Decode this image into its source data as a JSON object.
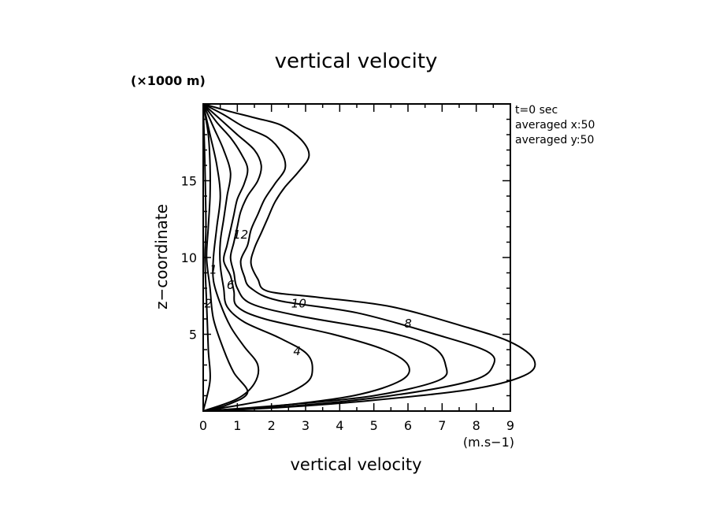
{
  "chart_data": {
    "type": "line",
    "title": "vertical velocity",
    "xlabel": "vertical velocity",
    "ylabel": "z−coordinate",
    "x_unit": "(m.s−1)",
    "y_unit": "(×1000 m)",
    "xlim": [
      0,
      9
    ],
    "ylim": [
      0,
      20
    ],
    "x_ticks": [
      0,
      1,
      2,
      3,
      4,
      5,
      6,
      7,
      8,
      9
    ],
    "y_ticks": [
      5,
      10,
      15
    ],
    "grid": false,
    "info": [
      "t=0 sec",
      "averaged  x:50",
      "averaged  y:50"
    ],
    "series": [
      {
        "label": "10",
        "label_at": [
          2.8,
          7.0
        ],
        "points": [
          [
            0,
            20
          ],
          [
            0.8,
            19.5
          ],
          [
            1.5,
            19.1
          ],
          [
            2.3,
            18.6
          ],
          [
            2.9,
            17.6
          ],
          [
            3.1,
            16.6
          ],
          [
            2.8,
            15.6
          ],
          [
            2.4,
            14.6
          ],
          [
            2.1,
            13.6
          ],
          [
            1.9,
            12.6
          ],
          [
            1.7,
            11.6
          ],
          [
            1.5,
            10.6
          ],
          [
            1.4,
            9.6
          ],
          [
            1.6,
            8.6
          ],
          [
            1.9,
            7.8
          ],
          [
            3.4,
            7.4
          ],
          [
            5.5,
            6.8
          ],
          [
            7.5,
            5.6
          ],
          [
            9.0,
            4.5
          ],
          [
            9.7,
            3.3
          ],
          [
            9.4,
            2.3
          ],
          [
            7.8,
            1.4
          ],
          [
            4.5,
            0.6
          ],
          [
            2.0,
            0.2
          ],
          [
            0,
            0
          ]
        ]
      },
      {
        "label": "8",
        "label_at": [
          6.0,
          5.7
        ],
        "points": [
          [
            0,
            20
          ],
          [
            0.6,
            19.3
          ],
          [
            1.2,
            18.5
          ],
          [
            1.9,
            17.8
          ],
          [
            2.3,
            16.8
          ],
          [
            2.4,
            15.8
          ],
          [
            2.1,
            14.8
          ],
          [
            1.8,
            13.8
          ],
          [
            1.6,
            12.8
          ],
          [
            1.4,
            11.8
          ],
          [
            1.3,
            10.8
          ],
          [
            1.1,
            9.8
          ],
          [
            1.2,
            8.8
          ],
          [
            1.4,
            8.0
          ],
          [
            2.2,
            7.2
          ],
          [
            4.5,
            6.4
          ],
          [
            6.8,
            5.0
          ],
          [
            8.3,
            3.9
          ],
          [
            8.5,
            3.0
          ],
          [
            7.9,
            2.0
          ],
          [
            5.5,
            1.0
          ],
          [
            2.5,
            0.3
          ],
          [
            0,
            0
          ]
        ]
      },
      {
        "label": "12",
        "label_at": [
          1.1,
          11.5
        ],
        "points": [
          [
            0,
            20
          ],
          [
            0.5,
            19.0
          ],
          [
            1.0,
            18.0
          ],
          [
            1.5,
            17.0
          ],
          [
            1.7,
            16.0
          ],
          [
            1.6,
            15.0
          ],
          [
            1.3,
            14.0
          ],
          [
            1.1,
            13.0
          ],
          [
            1.0,
            12.0
          ],
          [
            0.9,
            11.0
          ],
          [
            0.8,
            10.0
          ],
          [
            0.9,
            9.0
          ],
          [
            1.0,
            8.0
          ],
          [
            1.4,
            7.0
          ],
          [
            2.8,
            6.2
          ],
          [
            5.3,
            5.2
          ],
          [
            6.7,
            4.2
          ],
          [
            7.1,
            3.0
          ],
          [
            6.9,
            2.0
          ],
          [
            5.0,
            1.0
          ],
          [
            2.4,
            0.4
          ],
          [
            0,
            0
          ]
        ]
      },
      {
        "label": "6",
        "label_at": [
          0.8,
          8.2
        ],
        "points": [
          [
            0,
            20
          ],
          [
            0.4,
            18.8
          ],
          [
            0.8,
            17.8
          ],
          [
            1.1,
            16.8
          ],
          [
            1.3,
            15.8
          ],
          [
            1.2,
            14.8
          ],
          [
            1.0,
            13.8
          ],
          [
            0.9,
            12.8
          ],
          [
            0.8,
            11.8
          ],
          [
            0.7,
            10.8
          ],
          [
            0.6,
            9.8
          ],
          [
            0.8,
            8.8
          ],
          [
            0.9,
            7.8
          ],
          [
            1.0,
            6.8
          ],
          [
            1.8,
            6.0
          ],
          [
            3.8,
            5.0
          ],
          [
            5.3,
            4.0
          ],
          [
            6.0,
            3.0
          ],
          [
            5.8,
            2.0
          ],
          [
            4.4,
            1.0
          ],
          [
            2.0,
            0.3
          ],
          [
            0,
            0
          ]
        ]
      },
      {
        "label": "4",
        "label_at": [
          2.75,
          3.9
        ],
        "points": [
          [
            0,
            20
          ],
          [
            0.3,
            18.5
          ],
          [
            0.6,
            17.0
          ],
          [
            0.8,
            15.5
          ],
          [
            0.7,
            14.0
          ],
          [
            0.6,
            12.5
          ],
          [
            0.5,
            11.0
          ],
          [
            0.5,
            9.5
          ],
          [
            0.6,
            8.0
          ],
          [
            0.7,
            6.8
          ],
          [
            1.2,
            5.8
          ],
          [
            2.2,
            4.8
          ],
          [
            3.0,
            3.8
          ],
          [
            3.2,
            2.8
          ],
          [
            3.0,
            1.8
          ],
          [
            2.0,
            0.8
          ],
          [
            0,
            0
          ]
        ]
      },
      {
        "label": "2",
        "label_at": [
          0.15,
          7.0
        ],
        "points": [
          [
            0,
            20
          ],
          [
            0.2,
            18.0
          ],
          [
            0.4,
            16.0
          ],
          [
            0.5,
            14.0
          ],
          [
            0.4,
            12.0
          ],
          [
            0.3,
            10.0
          ],
          [
            0.3,
            8.5
          ],
          [
            0.5,
            7.0
          ],
          [
            0.8,
            5.5
          ],
          [
            1.2,
            4.2
          ],
          [
            1.6,
            3.0
          ],
          [
            1.5,
            1.8
          ],
          [
            1.0,
            0.8
          ],
          [
            0,
            0
          ]
        ]
      },
      {
        "label": "1",
        "label_at": [
          0.3,
          9.2
        ],
        "points": [
          [
            0,
            20
          ],
          [
            0.15,
            18.0
          ],
          [
            0.2,
            16.0
          ],
          [
            0.2,
            14.0
          ],
          [
            0.15,
            12.0
          ],
          [
            0.1,
            10.0
          ],
          [
            0.2,
            8.0
          ],
          [
            0.3,
            6.0
          ],
          [
            0.6,
            4.0
          ],
          [
            0.9,
            2.5
          ],
          [
            1.3,
            1.2
          ],
          [
            0.7,
            0.4
          ],
          [
            0,
            0
          ]
        ]
      },
      {
        "label": "",
        "label_at": null,
        "points": [
          [
            0,
            20
          ],
          [
            0.05,
            16.0
          ],
          [
            0.08,
            12.0
          ],
          [
            0.05,
            10.0
          ],
          [
            0.1,
            7.0
          ],
          [
            0.15,
            4.0
          ],
          [
            0.2,
            2.0
          ],
          [
            0,
            0
          ]
        ]
      }
    ]
  }
}
